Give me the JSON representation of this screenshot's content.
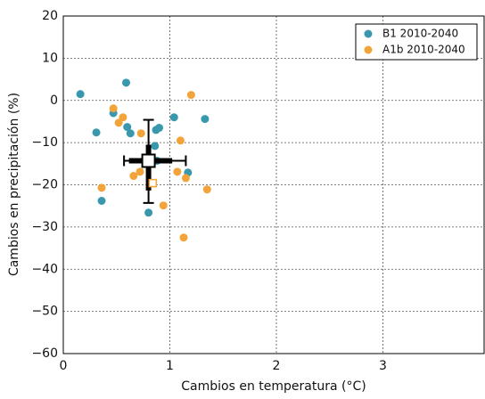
{
  "chart_data": {
    "type": "scatter",
    "xlabel": "Cambios en temperatura (°C)",
    "ylabel": "Cambios en precipitación (%)",
    "xlim": [
      0,
      3.95
    ],
    "ylim": [
      -60,
      20
    ],
    "xticks": [
      0,
      1,
      2,
      3
    ],
    "yticks": [
      20,
      10,
      0,
      {
        "value": -10,
        "label": "−10"
      },
      {
        "value": -20,
        "label": "−20"
      },
      {
        "value": -30,
        "label": "−30"
      },
      {
        "value": -40,
        "label": "−40"
      },
      {
        "value": -50,
        "label": "−50"
      },
      {
        "value": -60,
        "label": "−60"
      }
    ],
    "grid": true,
    "legend": "upper right",
    "series": [
      {
        "name": "B1 2010-2040",
        "color": "#3a98ae",
        "x": [
          0.16,
          0.31,
          0.47,
          0.59,
          0.6,
          0.63,
          0.36,
          0.87,
          0.9,
          0.86,
          1.04,
          1.33,
          1.17,
          0.8,
          0.88
        ],
        "values": [
          1.5,
          -7.6,
          -3.0,
          4.2,
          -6.3,
          -7.8,
          -23.8,
          -7.0,
          -6.5,
          -10.8,
          -4.0,
          -4.4,
          -17.1,
          -26.6,
          -14.3
        ]
      },
      {
        "name": "A1b 2010-2040",
        "color": "#f2a33a",
        "x": [
          0.47,
          0.56,
          0.52,
          0.36,
          0.73,
          0.66,
          0.72,
          1.1,
          1.2,
          1.07,
          1.15,
          1.35,
          1.13,
          0.94
        ],
        "values": [
          -1.9,
          -4.0,
          -5.3,
          -20.7,
          -7.8,
          -17.9,
          -16.9,
          -9.5,
          1.3,
          -16.9,
          -18.4,
          -21.1,
          -32.5,
          -24.9
        ]
      }
    ],
    "markers": [
      {
        "x": 0.8,
        "y": -14.3,
        "xrange": [
          0.57,
          1.15
        ],
        "yrange": [
          -24.3,
          -4.6
        ],
        "color": "#000000"
      },
      {
        "x": 0.84,
        "y": -19.6,
        "color": "#f2a33a"
      }
    ]
  }
}
